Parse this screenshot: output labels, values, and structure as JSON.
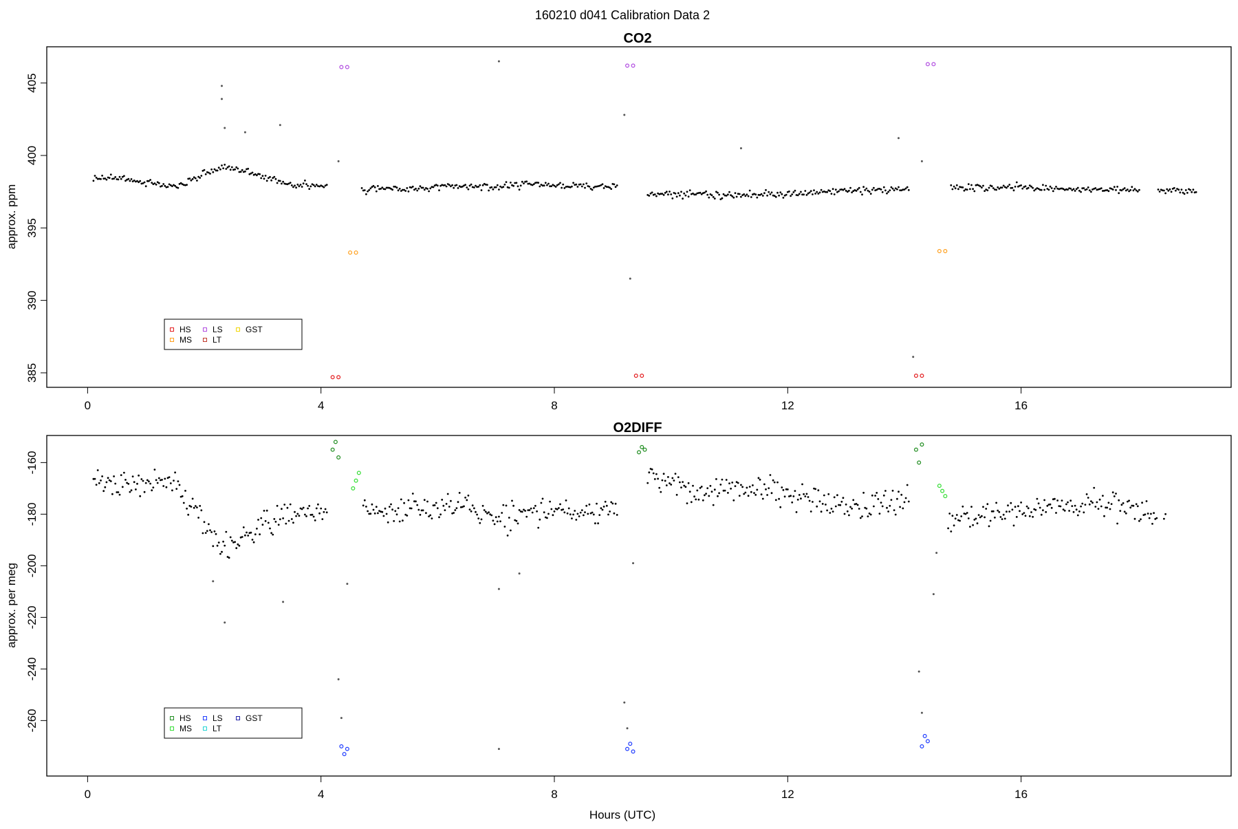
{
  "supertitle": "160210   d041   Calibration Data 2",
  "xlabel": "Hours (UTC)",
  "chart_data": [
    {
      "type": "scatter",
      "title": "CO2",
      "ylabel": "approx. ppm",
      "xlabel": "",
      "xlim": [
        -0.7,
        19.6
      ],
      "ylim": [
        384.0,
        407.5
      ],
      "xticks": [
        0,
        4,
        8,
        12,
        16
      ],
      "yticks": [
        385,
        390,
        395,
        400,
        405
      ],
      "grid": false,
      "legend_position": "bottom-left",
      "legend": [
        {
          "name": "HS",
          "color": "#e31a1c"
        },
        {
          "name": "MS",
          "color": "#ff9f1c"
        },
        {
          "name": "LS",
          "color": "#b04ae0"
        },
        {
          "name": "LT",
          "color": "#c0392b"
        },
        {
          "name": "GST",
          "color": "#f1d600"
        }
      ],
      "calibration_points": [
        {
          "name": "LS",
          "color": "#b04ae0",
          "points": [
            [
              4.35,
              406.1
            ],
            [
              4.45,
              406.1
            ],
            [
              9.25,
              406.2
            ],
            [
              9.35,
              406.2
            ],
            [
              14.4,
              406.3
            ],
            [
              14.5,
              406.3
            ]
          ]
        },
        {
          "name": "MS",
          "color": "#ff9f1c",
          "points": [
            [
              4.5,
              393.3
            ],
            [
              4.6,
              393.3
            ],
            [
              14.6,
              393.4
            ],
            [
              14.7,
              393.4
            ]
          ]
        },
        {
          "name": "HS",
          "color": "#e31a1c",
          "points": [
            [
              4.2,
              384.7
            ],
            [
              4.3,
              384.7
            ],
            [
              9.4,
              384.8
            ],
            [
              9.5,
              384.8
            ],
            [
              14.2,
              384.8
            ],
            [
              14.3,
              384.8
            ]
          ]
        }
      ],
      "sample_series": {
        "name": "",
        "color": "#000000",
        "x": [
          0.1,
          0.5,
          1.0,
          1.5,
          2.0,
          2.3,
          2.7,
          3.0,
          3.5,
          4.1,
          4.6,
          5.0,
          5.5,
          6.0,
          6.5,
          7.0,
          7.5,
          8.0,
          8.5,
          9.1,
          9.5,
          10.0,
          10.5,
          11.0,
          11.5,
          12.0,
          12.5,
          13.0,
          13.5,
          14.1,
          14.8,
          15.5,
          16.0,
          16.5,
          17.0,
          17.5,
          18.0,
          18.5,
          19.0
        ],
        "y": [
          398.4,
          398.5,
          398.1,
          397.8,
          398.7,
          399.2,
          399.0,
          398.5,
          398.0,
          397.9,
          397.5,
          397.8,
          397.7,
          397.8,
          397.9,
          397.8,
          398.0,
          398.0,
          397.9,
          397.9,
          397.3,
          397.3,
          397.4,
          397.2,
          397.4,
          397.3,
          397.5,
          397.6,
          397.6,
          397.7,
          397.8,
          397.8,
          397.8,
          397.7,
          397.7,
          397.6,
          397.7,
          397.6,
          397.5
        ]
      },
      "outliers": [
        [
          2.3,
          404.8
        ],
        [
          2.3,
          403.9
        ],
        [
          2.35,
          401.9
        ],
        [
          2.7,
          401.6
        ],
        [
          3.3,
          402.1
        ],
        [
          7.05,
          406.5
        ],
        [
          11.2,
          400.5
        ],
        [
          13.9,
          401.2
        ],
        [
          4.3,
          399.6
        ],
        [
          9.2,
          402.8
        ],
        [
          9.3,
          391.5
        ],
        [
          14.3,
          399.6
        ],
        [
          14.15,
          386.1
        ]
      ]
    },
    {
      "type": "scatter",
      "title": "O2DIFF",
      "ylabel": "approx. per meg",
      "xlabel": "Hours (UTC)",
      "xlim": [
        -0.7,
        19.6
      ],
      "ylim": [
        -281.5,
        -149.5
      ],
      "xticks": [
        0,
        4,
        8,
        12,
        16
      ],
      "yticks": [
        -160,
        -180,
        -200,
        -220,
        -240,
        -260
      ],
      "grid": false,
      "legend_position": "bottom-left",
      "legend": [
        {
          "name": "HS",
          "color": "#1e8c1e"
        },
        {
          "name": "MS",
          "color": "#33dd33"
        },
        {
          "name": "LS",
          "color": "#1f3cff"
        },
        {
          "name": "LT",
          "color": "#22d3d3"
        },
        {
          "name": "GST",
          "color": "#2020a8"
        }
      ],
      "calibration_points": [
        {
          "name": "HS",
          "color": "#1e8c1e",
          "points": [
            [
              4.2,
              -155
            ],
            [
              4.25,
              -152
            ],
            [
              4.3,
              -158
            ],
            [
              9.45,
              -156
            ],
            [
              9.5,
              -154
            ],
            [
              9.55,
              -155
            ],
            [
              14.2,
              -155
            ],
            [
              14.3,
              -153
            ],
            [
              14.25,
              -160
            ]
          ]
        },
        {
          "name": "MS",
          "color": "#33dd33",
          "points": [
            [
              4.55,
              -170
            ],
            [
              4.6,
              -167
            ],
            [
              4.65,
              -164
            ],
            [
              14.6,
              -169
            ],
            [
              14.65,
              -171
            ],
            [
              14.7,
              -173
            ]
          ]
        },
        {
          "name": "LS",
          "color": "#1f3cff",
          "points": [
            [
              4.35,
              -270
            ],
            [
              4.4,
              -273
            ],
            [
              4.45,
              -271
            ],
            [
              9.25,
              -271
            ],
            [
              9.3,
              -269
            ],
            [
              9.35,
              -272
            ],
            [
              14.3,
              -270
            ],
            [
              14.35,
              -266
            ],
            [
              14.4,
              -268
            ]
          ]
        }
      ],
      "sample_series": {
        "name": "",
        "color": "#000000",
        "x": [
          0.1,
          0.5,
          1.0,
          1.5,
          2.0,
          2.3,
          2.7,
          3.0,
          3.5,
          4.1,
          4.8,
          5.0,
          5.5,
          6.0,
          6.5,
          7.0,
          7.5,
          8.0,
          8.5,
          9.1,
          9.6,
          10.0,
          10.5,
          11.0,
          11.5,
          12.0,
          12.5,
          13.0,
          13.5,
          14.1,
          14.8,
          15.5,
          16.0,
          16.5,
          17.0,
          17.5,
          18.0,
          18.5
        ],
        "y": [
          -166,
          -170,
          -168,
          -168,
          -183,
          -195,
          -188,
          -185,
          -180,
          -178,
          -179,
          -180,
          -178,
          -176,
          -178,
          -182,
          -180,
          -178,
          -180,
          -178,
          -165,
          -168,
          -172,
          -170,
          -170,
          -171,
          -175,
          -176,
          -176,
          -174,
          -182,
          -180,
          -178,
          -176,
          -177,
          -176,
          -178,
          -181
        ]
      },
      "outliers": [
        [
          2.35,
          -222
        ],
        [
          3.35,
          -214
        ],
        [
          2.15,
          -206
        ],
        [
          7.05,
          -209
        ],
        [
          7.4,
          -203
        ],
        [
          7.05,
          -271
        ],
        [
          4.3,
          -244
        ],
        [
          4.35,
          -259
        ],
        [
          4.45,
          -207
        ],
        [
          9.2,
          -253
        ],
        [
          9.25,
          -263
        ],
        [
          9.35,
          -199
        ],
        [
          14.25,
          -241
        ],
        [
          14.3,
          -257
        ],
        [
          14.55,
          -195
        ],
        [
          14.5,
          -211
        ]
      ]
    }
  ]
}
